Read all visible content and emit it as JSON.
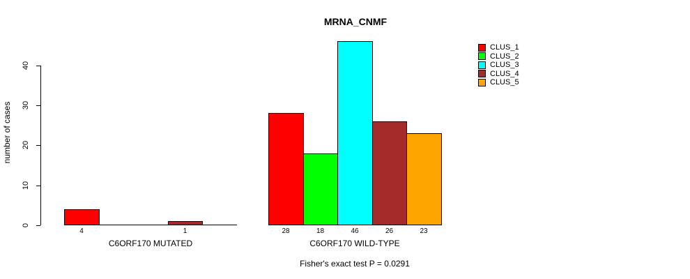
{
  "chart_data": {
    "type": "bar",
    "title": "MRNA_CNMF",
    "xlabel": "",
    "ylabel": "number of cases",
    "categories": [
      "C6ORF170 MUTATED",
      "C6ORF170 WILD-TYPE"
    ],
    "series": [
      {
        "name": "CLUS_1",
        "color": "#ff0000",
        "values": [
          4,
          28
        ]
      },
      {
        "name": "CLUS_2",
        "color": "#00ff00",
        "values": [
          0,
          18
        ]
      },
      {
        "name": "CLUS_3",
        "color": "#00ffff",
        "values": [
          0,
          46
        ]
      },
      {
        "name": "CLUS_4",
        "color": "#a52a2a",
        "values": [
          1,
          26
        ]
      },
      {
        "name": "CLUS_5",
        "color": "#ffa500",
        "values": [
          0,
          23
        ]
      }
    ],
    "yticks": [
      0,
      10,
      20,
      30,
      40
    ],
    "ylim": [
      0,
      46
    ],
    "grid": false,
    "legend_position": "right",
    "bar_value_labels": "shown under each non-zero bar",
    "annotation": "Fisher's exact test P = 0.0291"
  }
}
